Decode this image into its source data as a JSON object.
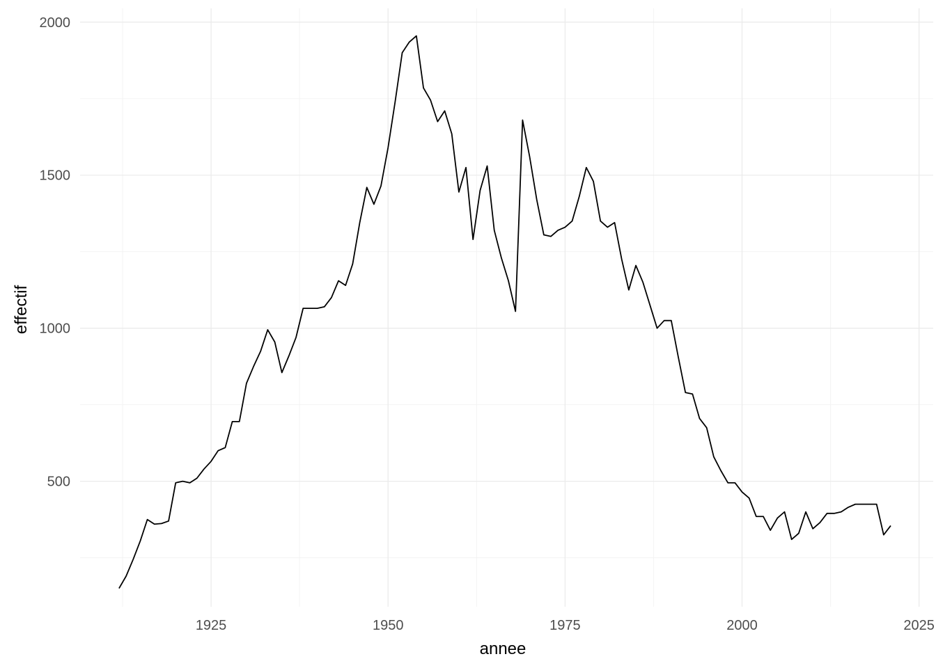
{
  "chart_data": {
    "type": "line",
    "xlabel": "annee",
    "ylabel": "effectif",
    "xlim": [
      1906.5,
      2027
    ],
    "ylim": [
      90,
      2045
    ],
    "x_ticks": [
      1925,
      1950,
      1975,
      2000,
      2025
    ],
    "y_ticks": [
      500,
      1000,
      1500,
      2000
    ],
    "grid": true,
    "line_color": "#000000",
    "x": [
      1912,
      1913,
      1914,
      1915,
      1916,
      1917,
      1918,
      1919,
      1920,
      1921,
      1922,
      1923,
      1924,
      1925,
      1926,
      1927,
      1928,
      1929,
      1930,
      1931,
      1932,
      1933,
      1934,
      1935,
      1936,
      1937,
      1938,
      1939,
      1940,
      1941,
      1942,
      1943,
      1944,
      1945,
      1946,
      1947,
      1948,
      1949,
      1950,
      1951,
      1952,
      1953,
      1954,
      1955,
      1956,
      1957,
      1958,
      1959,
      1960,
      1961,
      1962,
      1963,
      1964,
      1965,
      1966,
      1967,
      1968,
      1969,
      1970,
      1971,
      1972,
      1973,
      1974,
      1975,
      1976,
      1977,
      1978,
      1979,
      1980,
      1981,
      1982,
      1983,
      1984,
      1985,
      1986,
      1987,
      1988,
      1989,
      1990,
      1991,
      1992,
      1993,
      1994,
      1995,
      1996,
      1997,
      1998,
      1999,
      2000,
      2001,
      2002,
      2003,
      2004,
      2005,
      2006,
      2007,
      2008,
      2009,
      2010,
      2011,
      2012,
      2013,
      2014,
      2015,
      2016,
      2017,
      2018,
      2019,
      2020,
      2021
    ],
    "values": [
      150,
      190,
      245,
      305,
      375,
      360,
      362,
      370,
      495,
      500,
      495,
      510,
      540,
      565,
      600,
      610,
      695,
      695,
      820,
      875,
      925,
      995,
      955,
      855,
      910,
      970,
      1065,
      1065,
      1065,
      1070,
      1100,
      1155,
      1140,
      1210,
      1345,
      1460,
      1405,
      1465,
      1590,
      1740,
      1900,
      1935,
      1955,
      1785,
      1745,
      1675,
      1710,
      1635,
      1445,
      1525,
      1290,
      1450,
      1530,
      1320,
      1230,
      1155,
      1055,
      1680,
      1560,
      1420,
      1305,
      1300,
      1320,
      1330,
      1350,
      1430,
      1525,
      1480,
      1350,
      1330,
      1345,
      1225,
      1125,
      1205,
      1150,
      1075,
      1000,
      1025,
      1025,
      905,
      790,
      785,
      705,
      675,
      580,
      535,
      495,
      495,
      465,
      445,
      385,
      385,
      340,
      380,
      400,
      310,
      330,
      400,
      345,
      365,
      395,
      395,
      400,
      415,
      425,
      425,
      425,
      425,
      325,
      355
    ]
  }
}
